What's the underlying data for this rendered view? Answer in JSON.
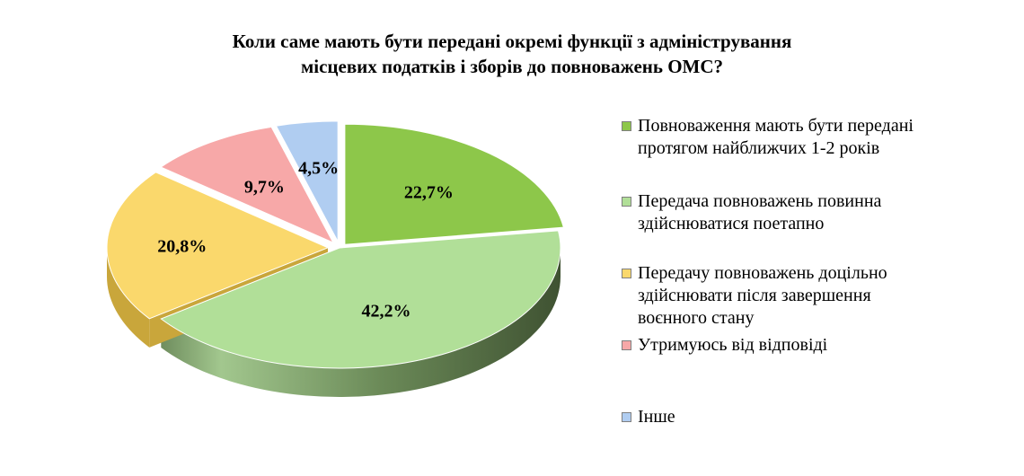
{
  "title_lines": [
    "Коли саме мають бути передані окремі функції з адміністрування",
    "місцевих податків і зборів до повноважень ОМС?"
  ],
  "chart_data": {
    "type": "pie",
    "title": "Коли саме мають бути передані окремі функції з адміністрування місцевих податків і зборів до повноважень ОМС?",
    "style": "3d-exploded",
    "legend_position": "right",
    "slices": [
      {
        "label_lines": [
          "Повноваження мають бути передані",
          "протягом найближчих 1-2 років"
        ],
        "value": 22.7,
        "data_label": "22,7%",
        "color": "#8dc74a"
      },
      {
        "label_lines": [
          "Передача повноважень повинна",
          "здійснюватися поетапно"
        ],
        "value": 42.2,
        "data_label": "42,2%",
        "color": "#b1df98"
      },
      {
        "label_lines": [
          "Передачу повноважень доцільно",
          "здійснювати після завершення",
          "воєнного стану"
        ],
        "value": 20.8,
        "data_label": "20,8%",
        "color": "#fad86c"
      },
      {
        "label_lines": [
          "Утримуюсь від відповіді"
        ],
        "value": 9.7,
        "data_label": "9,7%",
        "color": "#f7a8a8"
      },
      {
        "label_lines": [
          "Інше"
        ],
        "value": 4.5,
        "data_label": "4,5%",
        "color": "#b0cdf1"
      }
    ]
  }
}
